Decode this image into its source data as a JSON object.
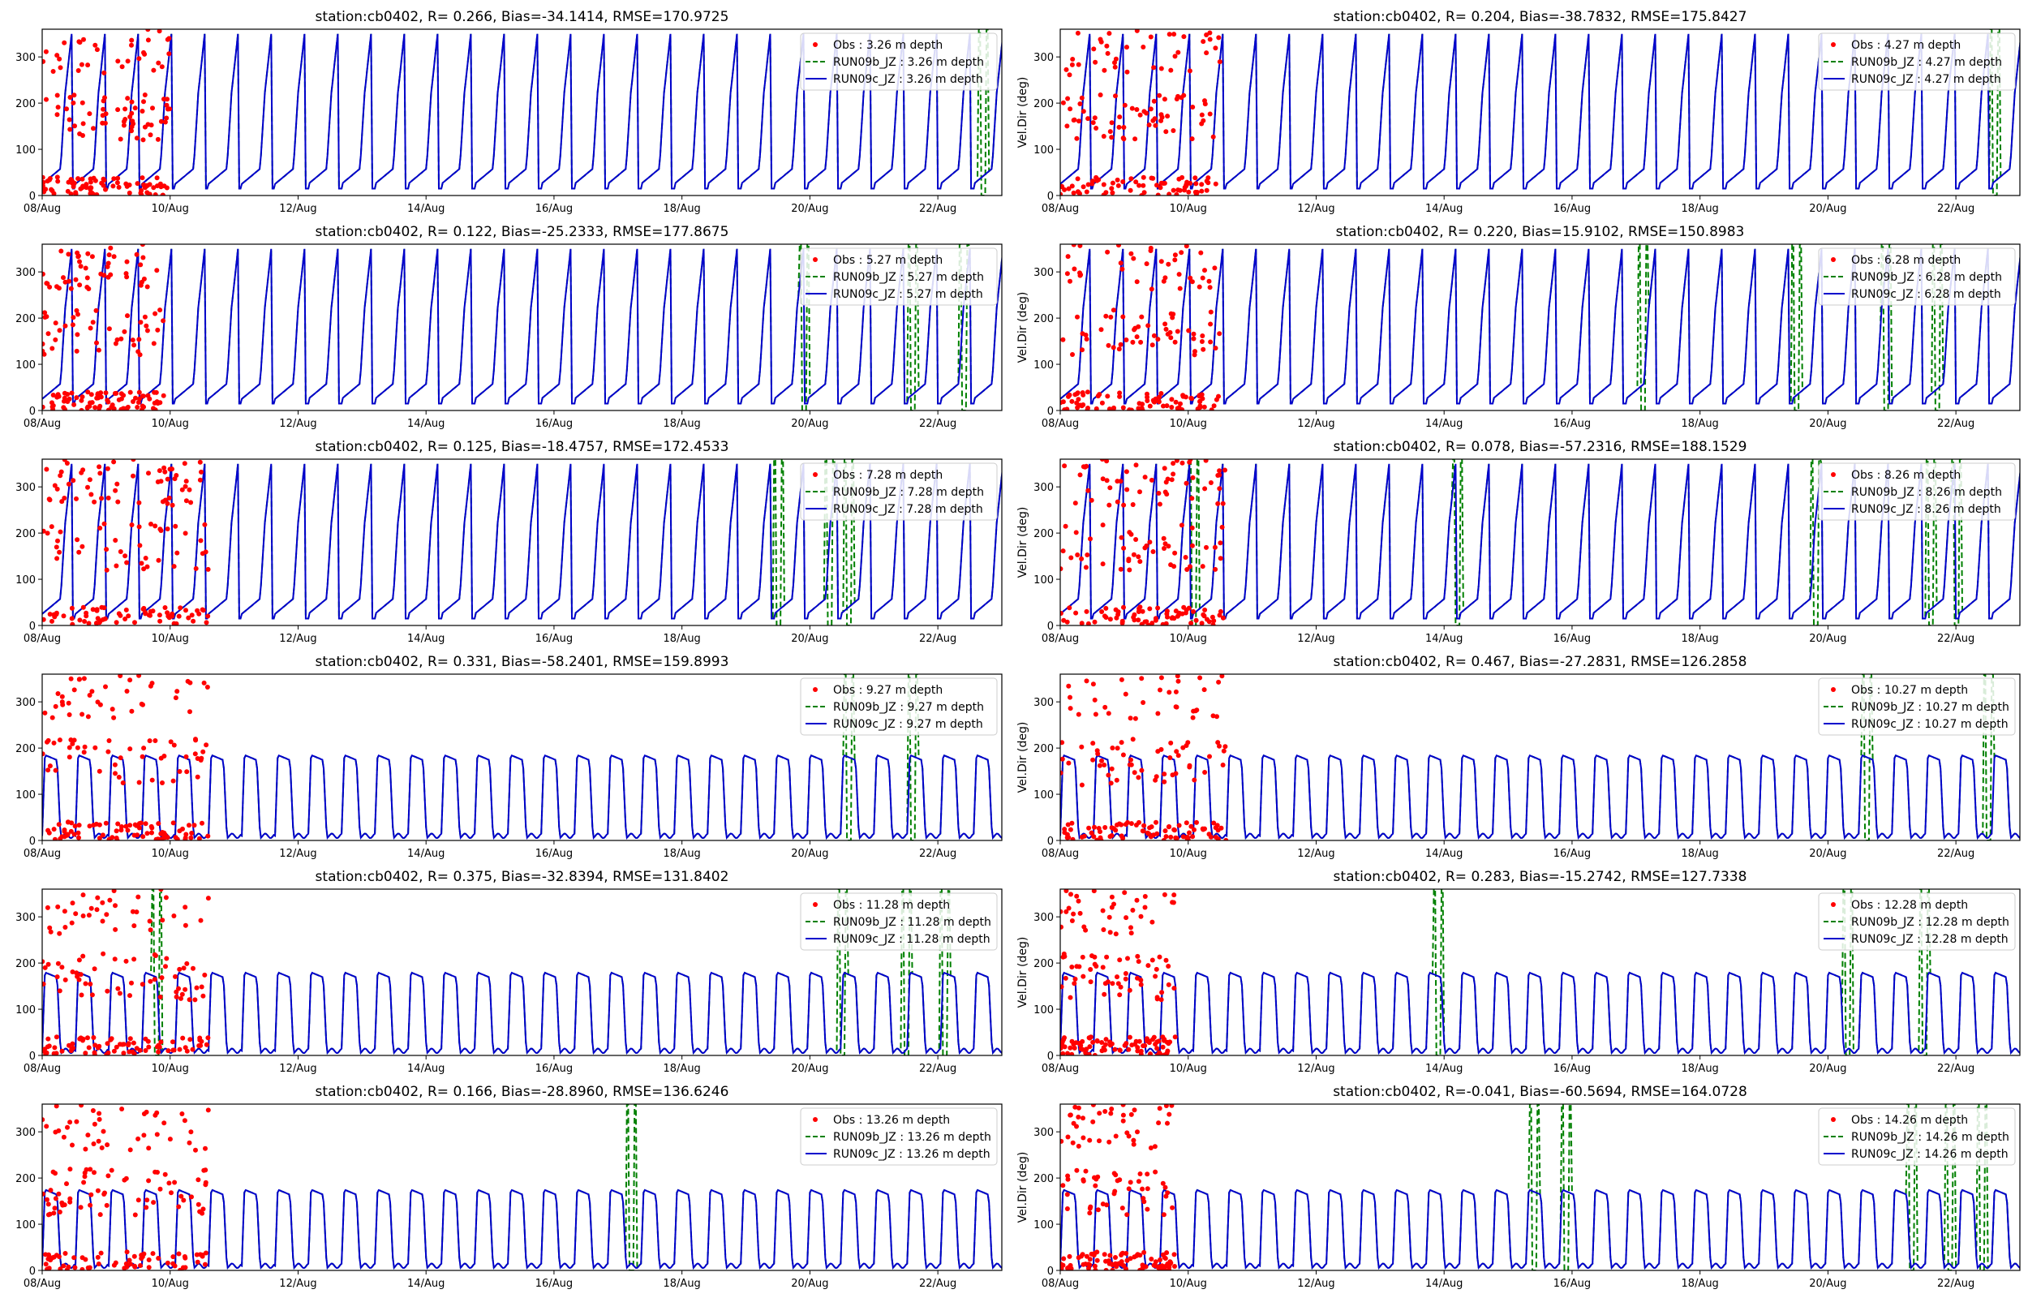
{
  "chart_data": [
    {
      "type": "line",
      "title": "station:cb0402, R= 0.266, Bias=-34.1414, RMSE=170.9725",
      "ylabel": "",
      "ylim": [
        0,
        360
      ],
      "xlim": [
        0,
        15
      ],
      "xticklabels": [
        "08/Aug",
        "10/Aug",
        "12/Aug",
        "14/Aug",
        "16/Aug",
        "18/Aug",
        "20/Aug",
        "22/Aug"
      ],
      "yticklabels": [
        "0",
        "100",
        "200",
        "300"
      ],
      "legend": [
        "Obs : 3.26 m depth",
        "RUN09b_JZ : 3.26 m depth",
        "RUN09c_JZ : 3.26 m depth"
      ],
      "depth": 3.26,
      "obs_end_day": 2.0,
      "model_period_days": 0.52,
      "model_high": 330,
      "model_low": 15,
      "divergence_days": [
        14.7
      ],
      "series": [
        {
          "name": "Obs",
          "color": "#ff0000",
          "style": "points"
        },
        {
          "name": "RUN09b_JZ",
          "color": "#008000",
          "style": "dashed"
        },
        {
          "name": "RUN09c_JZ",
          "color": "#0000cc",
          "style": "solid"
        }
      ]
    },
    {
      "type": "line",
      "title": "station:cb0402, R= 0.204, Bias=-38.7832, RMSE=175.8427",
      "ylabel": "Vel.Dir (deg)",
      "ylim": [
        0,
        360
      ],
      "xlim": [
        0,
        15
      ],
      "xticklabels": [
        "08/Aug",
        "10/Aug",
        "12/Aug",
        "14/Aug",
        "16/Aug",
        "18/Aug",
        "20/Aug",
        "22/Aug"
      ],
      "yticklabels": [
        "0",
        "100",
        "200",
        "300"
      ],
      "legend": [
        "Obs : 4.27 m depth",
        "RUN09b_JZ : 4.27 m depth",
        "RUN09c_JZ : 4.27 m depth"
      ],
      "depth": 4.27,
      "obs_end_day": 2.5,
      "model_period_days": 0.52,
      "model_high": 330,
      "model_low": 15,
      "divergence_days": [
        14.6
      ],
      "series": [
        {
          "name": "Obs",
          "color": "#ff0000",
          "style": "points"
        },
        {
          "name": "RUN09b_JZ",
          "color": "#008000",
          "style": "dashed"
        },
        {
          "name": "RUN09c_JZ",
          "color": "#0000cc",
          "style": "solid"
        }
      ]
    },
    {
      "type": "line",
      "title": "station:cb0402, R= 0.122, Bias=-25.2333, RMSE=177.8675",
      "ylabel": "",
      "ylim": [
        0,
        360
      ],
      "xlim": [
        0,
        15
      ],
      "xticklabels": [
        "08/Aug",
        "10/Aug",
        "12/Aug",
        "14/Aug",
        "16/Aug",
        "18/Aug",
        "20/Aug",
        "22/Aug"
      ],
      "yticklabels": [
        "0",
        "100",
        "200",
        "300"
      ],
      "legend": [
        "Obs : 5.27 m depth",
        "RUN09b_JZ : 5.27 m depth",
        "RUN09c_JZ : 5.27 m depth"
      ],
      "depth": 5.27,
      "obs_end_day": 1.9,
      "model_period_days": 0.52,
      "model_high": 330,
      "model_low": 15,
      "divergence_days": [
        11.9,
        13.6,
        14.4
      ],
      "series": [
        {
          "name": "Obs",
          "color": "#ff0000",
          "style": "points"
        },
        {
          "name": "RUN09b_JZ",
          "color": "#008000",
          "style": "dashed"
        },
        {
          "name": "RUN09c_JZ",
          "color": "#0000cc",
          "style": "solid"
        }
      ]
    },
    {
      "type": "line",
      "title": "station:cb0402, R= 0.220, Bias=15.9102, RMSE=150.8983",
      "ylabel": "Vel.Dir (deg)",
      "ylim": [
        0,
        360
      ],
      "xlim": [
        0,
        15
      ],
      "xticklabels": [
        "08/Aug",
        "10/Aug",
        "12/Aug",
        "14/Aug",
        "16/Aug",
        "18/Aug",
        "20/Aug",
        "22/Aug"
      ],
      "yticklabels": [
        "0",
        "100",
        "200",
        "300"
      ],
      "legend": [
        "Obs : 6.28 m depth",
        "RUN09b_JZ : 6.28 m depth",
        "RUN09c_JZ : 6.28 m depth"
      ],
      "depth": 6.28,
      "obs_end_day": 2.5,
      "model_period_days": 0.52,
      "model_high": 330,
      "model_low": 15,
      "divergence_days": [
        9.1,
        11.5,
        12.9,
        13.7
      ],
      "series": [
        {
          "name": "Obs",
          "color": "#ff0000",
          "style": "points"
        },
        {
          "name": "RUN09b_JZ",
          "color": "#008000",
          "style": "dashed"
        },
        {
          "name": "RUN09c_JZ",
          "color": "#0000cc",
          "style": "solid"
        }
      ]
    },
    {
      "type": "line",
      "title": "station:cb0402, R= 0.125, Bias=-18.4757, RMSE=172.4533",
      "ylabel": "",
      "ylim": [
        0,
        360
      ],
      "xlim": [
        0,
        15
      ],
      "xticklabels": [
        "08/Aug",
        "10/Aug",
        "12/Aug",
        "14/Aug",
        "16/Aug",
        "18/Aug",
        "20/Aug",
        "22/Aug"
      ],
      "yticklabels": [
        "0",
        "100",
        "200",
        "300"
      ],
      "legend": [
        "Obs : 7.28 m depth",
        "RUN09b_JZ : 7.28 m depth",
        "RUN09c_JZ : 7.28 m depth"
      ],
      "depth": 7.28,
      "obs_end_day": 2.6,
      "model_period_days": 0.52,
      "model_high": 330,
      "model_low": 15,
      "divergence_days": [
        11.5,
        12.3,
        12.6
      ],
      "series": [
        {
          "name": "Obs",
          "color": "#ff0000",
          "style": "points"
        },
        {
          "name": "RUN09b_JZ",
          "color": "#008000",
          "style": "dashed"
        },
        {
          "name": "RUN09c_JZ",
          "color": "#0000cc",
          "style": "solid"
        }
      ]
    },
    {
      "type": "line",
      "title": "station:cb0402, R= 0.078, Bias=-57.2316, RMSE=188.1529",
      "ylabel": "Vel.Dir (deg)",
      "ylim": [
        0,
        360
      ],
      "xlim": [
        0,
        15
      ],
      "xticklabels": [
        "08/Aug",
        "10/Aug",
        "12/Aug",
        "14/Aug",
        "16/Aug",
        "18/Aug",
        "20/Aug",
        "22/Aug"
      ],
      "yticklabels": [
        "0",
        "100",
        "200",
        "300"
      ],
      "legend": [
        "Obs : 8.26 m depth",
        "RUN09b_JZ : 8.26 m depth",
        "RUN09c_JZ : 8.26 m depth"
      ],
      "depth": 8.26,
      "obs_end_day": 2.6,
      "model_period_days": 0.52,
      "model_high": 330,
      "model_low": 15,
      "divergence_days": [
        2.1,
        6.2,
        11.8,
        13.6,
        14.0
      ],
      "series": [
        {
          "name": "Obs",
          "color": "#ff0000",
          "style": "points"
        },
        {
          "name": "RUN09b_JZ",
          "color": "#008000",
          "style": "dashed"
        },
        {
          "name": "RUN09c_JZ",
          "color": "#0000cc",
          "style": "solid"
        }
      ]
    },
    {
      "type": "line",
      "title": "station:cb0402, R= 0.331, Bias=-58.2401, RMSE=159.8993",
      "ylabel": "",
      "ylim": [
        0,
        360
      ],
      "xlim": [
        0,
        15
      ],
      "xticklabels": [
        "08/Aug",
        "10/Aug",
        "12/Aug",
        "14/Aug",
        "16/Aug",
        "18/Aug",
        "20/Aug",
        "22/Aug"
      ],
      "yticklabels": [
        "0",
        "100",
        "200",
        "300"
      ],
      "legend": [
        "Obs : 9.27 m depth",
        "RUN09b_JZ : 9.27 m depth",
        "RUN09c_JZ : 9.27 m depth"
      ],
      "depth": 9.27,
      "obs_end_day": 2.6,
      "model_period_days": 0.52,
      "model_high": 185,
      "model_low": 10,
      "divergence_days": [
        12.6,
        13.6
      ],
      "series": [
        {
          "name": "Obs",
          "color": "#ff0000",
          "style": "points"
        },
        {
          "name": "RUN09b_JZ",
          "color": "#008000",
          "style": "dashed"
        },
        {
          "name": "RUN09c_JZ",
          "color": "#0000cc",
          "style": "solid"
        }
      ]
    },
    {
      "type": "line",
      "title": "station:cb0402, R= 0.467, Bias=-27.2831, RMSE=126.2858",
      "ylabel": "Vel.Dir (deg)",
      "ylim": [
        0,
        360
      ],
      "xlim": [
        0,
        15
      ],
      "xticklabels": [
        "08/Aug",
        "10/Aug",
        "12/Aug",
        "14/Aug",
        "16/Aug",
        "18/Aug",
        "20/Aug",
        "22/Aug"
      ],
      "yticklabels": [
        "0",
        "100",
        "200",
        "300"
      ],
      "legend": [
        "Obs : 10.27 m depth",
        "RUN09b_JZ : 10.27 m depth",
        "RUN09c_JZ : 10.27 m depth"
      ],
      "depth": 10.27,
      "obs_end_day": 2.6,
      "model_period_days": 0.52,
      "model_high": 185,
      "model_low": 10,
      "divergence_days": [
        12.6,
        14.5
      ],
      "series": [
        {
          "name": "Obs",
          "color": "#ff0000",
          "style": "points"
        },
        {
          "name": "RUN09b_JZ",
          "color": "#008000",
          "style": "dashed"
        },
        {
          "name": "RUN09c_JZ",
          "color": "#0000cc",
          "style": "solid"
        }
      ]
    },
    {
      "type": "line",
      "title": "station:cb0402, R= 0.375, Bias=-32.8394, RMSE=131.8402",
      "ylabel": "",
      "ylim": [
        0,
        360
      ],
      "xlim": [
        0,
        15
      ],
      "xticklabels": [
        "08/Aug",
        "10/Aug",
        "12/Aug",
        "14/Aug",
        "16/Aug",
        "18/Aug",
        "20/Aug",
        "22/Aug"
      ],
      "yticklabels": [
        "0",
        "100",
        "200",
        "300"
      ],
      "legend": [
        "Obs : 11.28 m depth",
        "RUN09b_JZ : 11.28 m depth",
        "RUN09c_JZ : 11.28 m depth"
      ],
      "depth": 11.28,
      "obs_end_day": 2.6,
      "model_period_days": 0.52,
      "model_high": 180,
      "model_low": 10,
      "divergence_days": [
        1.8,
        12.5,
        13.5,
        14.1
      ],
      "series": [
        {
          "name": "Obs",
          "color": "#ff0000",
          "style": "points"
        },
        {
          "name": "RUN09b_JZ",
          "color": "#008000",
          "style": "dashed"
        },
        {
          "name": "RUN09c_JZ",
          "color": "#0000cc",
          "style": "solid"
        }
      ]
    },
    {
      "type": "line",
      "title": "station:cb0402, R= 0.283, Bias=-15.2742, RMSE=127.7338",
      "ylabel": "Vel.Dir (deg)",
      "ylim": [
        0,
        360
      ],
      "xlim": [
        0,
        15
      ],
      "xticklabels": [
        "08/Aug",
        "10/Aug",
        "12/Aug",
        "14/Aug",
        "16/Aug",
        "18/Aug",
        "20/Aug",
        "22/Aug"
      ],
      "yticklabels": [
        "0",
        "100",
        "200",
        "300"
      ],
      "legend": [
        "Obs : 12.28 m depth",
        "RUN09b_JZ : 12.28 m depth",
        "RUN09c_JZ : 12.28 m depth"
      ],
      "depth": 12.28,
      "obs_end_day": 1.8,
      "model_period_days": 0.52,
      "model_high": 180,
      "model_low": 10,
      "divergence_days": [
        5.9,
        12.3,
        13.5
      ],
      "series": [
        {
          "name": "Obs",
          "color": "#ff0000",
          "style": "points"
        },
        {
          "name": "RUN09b_JZ",
          "color": "#008000",
          "style": "dashed"
        },
        {
          "name": "RUN09c_JZ",
          "color": "#0000cc",
          "style": "solid"
        }
      ]
    },
    {
      "type": "line",
      "title": "station:cb0402, R= 0.166, Bias=-28.8960, RMSE=136.6246",
      "ylabel": "",
      "ylim": [
        0,
        360
      ],
      "xlim": [
        0,
        15
      ],
      "xticklabels": [
        "08/Aug",
        "10/Aug",
        "12/Aug",
        "14/Aug",
        "16/Aug",
        "18/Aug",
        "20/Aug",
        "22/Aug"
      ],
      "yticklabels": [
        "0",
        "100",
        "200",
        "300"
      ],
      "legend": [
        "Obs : 13.26 m depth",
        "RUN09b_JZ : 13.26 m depth",
        "RUN09c_JZ : 13.26 m depth"
      ],
      "depth": 13.26,
      "obs_end_day": 2.6,
      "model_period_days": 0.52,
      "model_high": 175,
      "model_low": 10,
      "divergence_days": [
        9.2
      ],
      "series": [
        {
          "name": "Obs",
          "color": "#ff0000",
          "style": "points"
        },
        {
          "name": "RUN09b_JZ",
          "color": "#008000",
          "style": "dashed"
        },
        {
          "name": "RUN09c_JZ",
          "color": "#0000cc",
          "style": "solid"
        }
      ]
    },
    {
      "type": "line",
      "title": "station:cb0402, R=-0.041, Bias=-60.5694, RMSE=164.0728",
      "ylabel": "Vel.Dir (deg)",
      "ylim": [
        0,
        360
      ],
      "xlim": [
        0,
        15
      ],
      "xticklabels": [
        "08/Aug",
        "10/Aug",
        "12/Aug",
        "14/Aug",
        "16/Aug",
        "18/Aug",
        "20/Aug",
        "22/Aug"
      ],
      "yticklabels": [
        "0",
        "100",
        "200",
        "300"
      ],
      "legend": [
        "Obs : 14.26 m depth",
        "RUN09b_JZ : 14.26 m depth",
        "RUN09c_JZ : 14.26 m depth"
      ],
      "depth": 14.26,
      "obs_end_day": 1.8,
      "model_period_days": 0.52,
      "model_high": 175,
      "model_low": 10,
      "divergence_days": [
        7.4,
        7.9,
        13.3,
        13.9,
        14.4
      ],
      "series": [
        {
          "name": "Obs",
          "color": "#ff0000",
          "style": "points"
        },
        {
          "name": "RUN09b_JZ",
          "color": "#008000",
          "style": "dashed"
        },
        {
          "name": "RUN09c_JZ",
          "color": "#0000cc",
          "style": "solid"
        }
      ]
    }
  ]
}
